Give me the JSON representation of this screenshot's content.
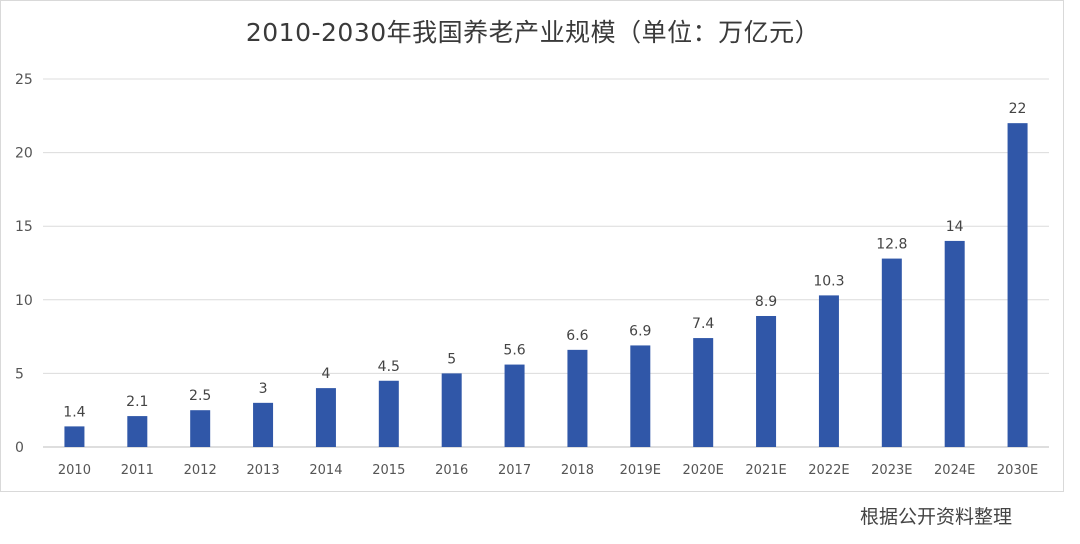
{
  "chart_data": {
    "type": "bar",
    "title": "2010-2030年我国养老产业规模（单位：万亿元）",
    "categories": [
      "2010",
      "2011",
      "2012",
      "2013",
      "2014",
      "2015",
      "2016",
      "2017",
      "2018",
      "2019E",
      "2020E",
      "2021E",
      "2022E",
      "2023E",
      "2024E",
      "2030E"
    ],
    "values": [
      1.4,
      2.1,
      2.5,
      3,
      4,
      4.5,
      5,
      5.6,
      6.6,
      6.9,
      7.4,
      8.9,
      10.3,
      12.8,
      14,
      22
    ],
    "value_labels": [
      "1.4",
      "2.1",
      "2.5",
      "3",
      "4",
      "4.5",
      "5",
      "5.6",
      "6.6",
      "6.9",
      "7.4",
      "8.9",
      "10.3",
      "12.8",
      "14",
      "22"
    ],
    "ylim": [
      0,
      25
    ],
    "yticks": [
      0,
      5,
      10,
      15,
      20,
      25
    ],
    "grid": true,
    "bar_color": "#3057a8",
    "xlabel": "",
    "ylabel": ""
  },
  "source_note": "根据公开资料整理"
}
